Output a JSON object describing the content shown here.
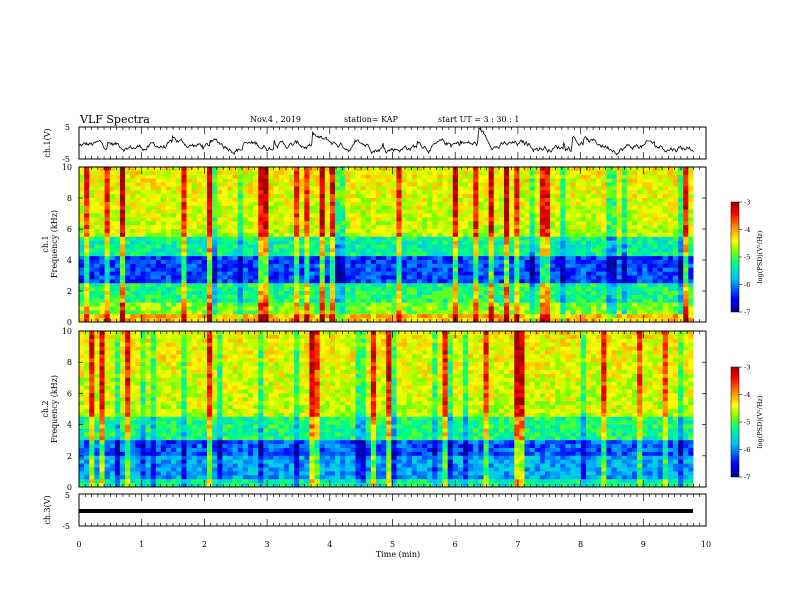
{
  "header": {
    "title": "VLF Spectra",
    "date": "Nov.4 , 2019",
    "station": "station= KAP",
    "start": "start UT = 3 : 30 : 1"
  },
  "chart_data": [
    {
      "type": "line",
      "ylabel": "ch.1(V)",
      "ylim": [
        -5,
        5
      ],
      "yticks": [
        "5",
        "-5"
      ],
      "xlim": [
        0,
        10
      ],
      "description_values": "waveform fluctuating around -1 V"
    },
    {
      "type": "heatmap",
      "ylabel_line1": "ch.1",
      "ylabel_line2": "Frequency (kHz)",
      "ylim": [
        0,
        10
      ],
      "yticks": [
        "0",
        "2",
        "4",
        "6",
        "8",
        "10"
      ],
      "xlim": [
        0,
        10
      ],
      "colorbar": {
        "label": "log(PSD)(V²/Hz)",
        "ticks": [
          "-3",
          "-4",
          "-5",
          "-6",
          "-7"
        ],
        "range": [
          -7,
          -3
        ]
      }
    },
    {
      "type": "heatmap",
      "ylabel_line1": "ch.2",
      "ylabel_line2": "Frequency (kHz)",
      "ylim": [
        0,
        10
      ],
      "yticks": [
        "0",
        "2",
        "4",
        "6",
        "8",
        "10"
      ],
      "xlim": [
        0,
        10
      ],
      "colorbar": {
        "label": "log(PSD)(V²/Hz)",
        "ticks": [
          "-3",
          "-4",
          "-5",
          "-6",
          "-7"
        ],
        "range": [
          -7,
          -3
        ]
      }
    },
    {
      "type": "line",
      "ylabel": "ch.3(V)",
      "ylim": [
        -5,
        5
      ],
      "yticks": [
        "5",
        "-5"
      ],
      "xlim": [
        0,
        10
      ],
      "description_values": "flat line at about -1.5 V"
    }
  ],
  "xaxis": {
    "label": "Time (min)",
    "ticks": [
      "0",
      "1",
      "2",
      "3",
      "4",
      "5",
      "6",
      "7",
      "8",
      "9",
      "10"
    ],
    "range": [
      0,
      10
    ]
  },
  "colors": {
    "colormap": [
      "#00008f",
      "#0000ff",
      "#00c0ff",
      "#00ff80",
      "#80ff00",
      "#ffff00",
      "#ff8000",
      "#ff0000",
      "#a00000"
    ]
  }
}
